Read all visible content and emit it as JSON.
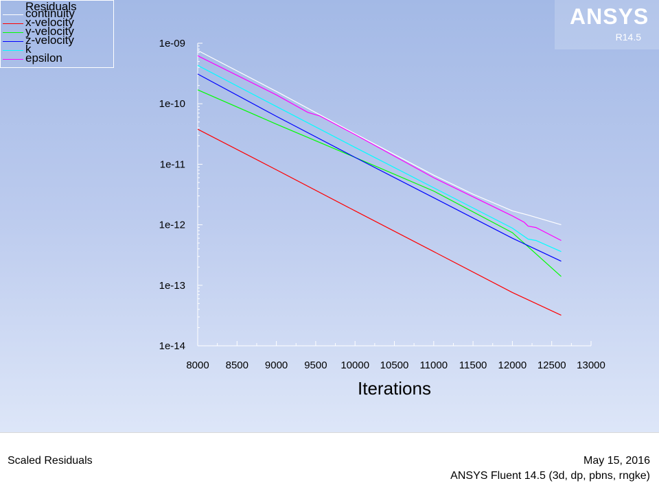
{
  "logo": {
    "text": "ANSYS",
    "version": "R14.5"
  },
  "footer": {
    "plot_name": "Scaled Residuals",
    "date": "May 15, 2016",
    "solver_info": "ANSYS Fluent 14.5 (3d, dp, pbns, rngke)"
  },
  "chart_data": {
    "type": "line",
    "title": "",
    "xlabel": "Iterations",
    "ylabel": "",
    "xlim": [
      8000,
      13000
    ],
    "ylim": [
      1e-14,
      1e-09
    ],
    "yscale": "log",
    "x_ticks": [
      "8000",
      "8500",
      "9000",
      "9500",
      "10000",
      "10500",
      "11000",
      "11500",
      "12000",
      "12500",
      "13000"
    ],
    "y_ticks": [
      "1e-14",
      "1e-13",
      "1e-12",
      "1e-11",
      "1e-10",
      "1e-09"
    ],
    "legend": {
      "title": "Residuals",
      "placement": "top-left"
    },
    "series": [
      {
        "name": "continuity",
        "color": "#ffffff",
        "x": [
          8000,
          9000,
          10000,
          11000,
          11500,
          12000,
          12200,
          12620
        ],
        "y": [
          7.6e-10,
          1.6e-10,
          3.2e-11,
          6.6e-12,
          3.2e-12,
          1.7e-12,
          1.45e-12,
          1e-12
        ]
      },
      {
        "name": "x-velocity",
        "color": "#ff0000",
        "x": [
          8000,
          9000,
          10000,
          11000,
          12000,
          12620
        ],
        "y": [
          3.8e-11,
          8.1e-12,
          1.7e-12,
          3.6e-13,
          7.6e-14,
          3.2e-14
        ]
      },
      {
        "name": "y-velocity",
        "color": "#00ff00",
        "x": [
          8000,
          9000,
          10000,
          11000,
          12000,
          12620
        ],
        "y": [
          1.7e-10,
          4.6e-11,
          1.3e-11,
          3.6e-12,
          7.4e-13,
          1.4e-13
        ]
      },
      {
        "name": "z-velocity",
        "color": "#0000ff",
        "x": [
          8000,
          9000,
          10000,
          11000,
          12000,
          12620
        ],
        "y": [
          3.1e-10,
          6.2e-11,
          1.3e-11,
          2.8e-12,
          6e-13,
          2.5e-13
        ]
      },
      {
        "name": "k",
        "color": "#00ffff",
        "x": [
          8000,
          9000,
          10000,
          11000,
          12000,
          12200,
          12300,
          12620
        ],
        "y": [
          4.3e-10,
          9e-11,
          1.9e-11,
          4.1e-12,
          8.8e-13,
          5.8e-13,
          5.5e-13,
          3.6e-13
        ]
      },
      {
        "name": "epsilon",
        "color": "#ff00ff",
        "x": [
          8000,
          9000,
          9400,
          9550,
          10000,
          11000,
          12000,
          12150,
          12200,
          12300,
          12620
        ],
        "y": [
          6.2e-10,
          1.4e-10,
          7.2e-11,
          6.3e-11,
          3.1e-11,
          6e-12,
          1.4e-12,
          1.1e-12,
          9.5e-13,
          9e-13,
          5.5e-13
        ]
      }
    ]
  }
}
